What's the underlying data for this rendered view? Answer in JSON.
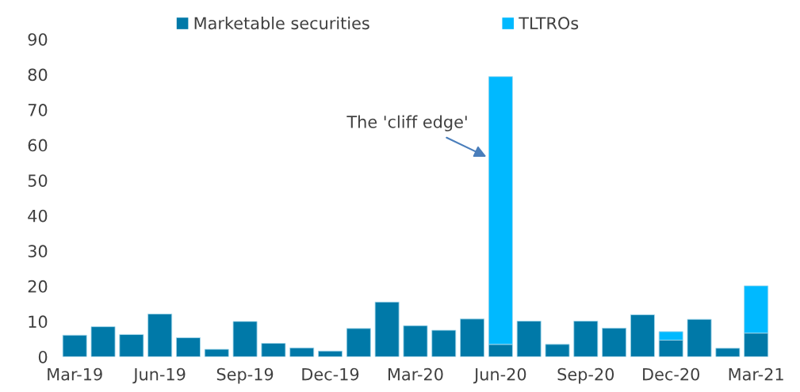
{
  "chart_data": {
    "type": "bar",
    "stacked": true,
    "categories": [
      "Mar-19",
      null,
      null,
      "Jun-19",
      null,
      null,
      "Sep-19",
      null,
      null,
      "Dec-19",
      null,
      null,
      "Mar-20",
      null,
      null,
      "Jun-20",
      null,
      null,
      "Sep-20",
      null,
      null,
      "Dec-20",
      null,
      null,
      "Mar-21"
    ],
    "series": [
      {
        "name": "Marketable securities",
        "color": "#0079a8",
        "values": [
          6.1,
          8.5,
          6.3,
          12.1,
          5.4,
          2.1,
          10.0,
          3.8,
          2.5,
          1.6,
          8.0,
          15.5,
          8.8,
          7.5,
          10.7,
          3.5,
          10.1,
          3.5,
          10.1,
          8.1,
          11.9,
          4.7,
          10.6,
          2.4,
          6.7
        ]
      },
      {
        "name": "TLTROs",
        "color": "#00b9ff",
        "values": [
          null,
          null,
          null,
          null,
          null,
          null,
          null,
          null,
          null,
          null,
          null,
          null,
          null,
          null,
          null,
          75.9,
          null,
          null,
          null,
          null,
          null,
          2.4,
          null,
          null,
          13.4
        ]
      }
    ],
    "ylim": [
      0,
      90
    ],
    "yticks": [
      0,
      10,
      20,
      30,
      40,
      50,
      60,
      70,
      80,
      90
    ],
    "grid": false,
    "legend": "top",
    "annotations": [
      "The 'cliff edge'"
    ]
  }
}
